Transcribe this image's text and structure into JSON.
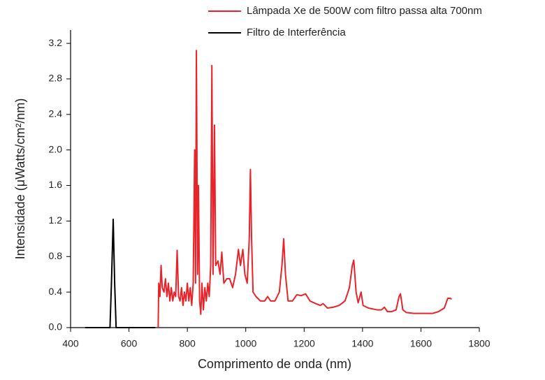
{
  "chart_data": {
    "type": "line",
    "xlabel": "Comprimento de onda (nm)",
    "ylabel": "Intensidade (μWatts/cm²/nm)",
    "xlim": [
      400,
      1800
    ],
    "xticks": [
      400,
      600,
      800,
      1000,
      1200,
      1400,
      1600,
      1800
    ],
    "ylim": [
      0,
      3.35
    ],
    "yticks": [
      {
        "value": 0,
        "label": "0.0"
      },
      {
        "value": 0.4,
        "label": "0.4"
      },
      {
        "value": 0.8,
        "label": "0.8"
      },
      {
        "value": 1.2,
        "label": "1.2"
      },
      {
        "value": 1.6,
        "label": "1.6"
      },
      {
        "value": 2.0,
        "label": "2.0"
      },
      {
        "value": 2.4,
        "label": "2.4"
      },
      {
        "value": 2.8,
        "label": "2.8"
      },
      {
        "value": 3.2,
        "label": "3.2"
      }
    ],
    "series": [
      {
        "name": "Lâmpada Xe de 500W com filtro passa alta 700nm",
        "color": "#e8232a",
        "x": [
          700,
          702,
          706,
          710,
          714,
          720,
          725,
          730,
          735,
          740,
          745,
          750,
          755,
          760,
          765,
          770,
          775,
          780,
          785,
          790,
          795,
          800,
          805,
          810,
          815,
          820,
          825,
          828,
          831,
          835,
          838,
          842,
          846,
          850,
          855,
          860,
          865,
          870,
          875,
          880,
          884,
          888,
          893,
          897,
          905,
          912,
          918,
          925,
          935,
          945,
          955,
          965,
          975,
          982,
          990,
          997,
          1005,
          1012,
          1016,
          1020,
          1025,
          1035,
          1050,
          1065,
          1075,
          1085,
          1100,
          1115,
          1124,
          1130,
          1136,
          1145,
          1160,
          1175,
          1190,
          1205,
          1220,
          1240,
          1255,
          1265,
          1280,
          1300,
          1320,
          1340,
          1355,
          1365,
          1370,
          1378,
          1385,
          1395,
          1402,
          1420,
          1450,
          1465,
          1475,
          1485,
          1500,
          1515,
          1525,
          1530,
          1538,
          1550,
          1575,
          1600,
          1620,
          1640,
          1660,
          1680,
          1692,
          1700,
          1705
        ],
        "values": [
          0.0,
          0.5,
          0.35,
          0.7,
          0.45,
          0.4,
          0.55,
          0.35,
          0.5,
          0.3,
          0.45,
          0.3,
          0.4,
          0.35,
          0.87,
          0.35,
          0.3,
          0.45,
          0.25,
          0.4,
          0.3,
          0.5,
          0.3,
          0.45,
          0.25,
          0.5,
          2.0,
          0.5,
          3.12,
          0.6,
          1.6,
          0.3,
          0.15,
          0.5,
          0.2,
          0.45,
          0.3,
          0.5,
          0.35,
          0.7,
          2.95,
          0.6,
          2.28,
          0.7,
          0.75,
          0.6,
          0.85,
          0.5,
          0.55,
          0.55,
          0.45,
          0.6,
          0.88,
          0.7,
          0.88,
          0.6,
          0.5,
          1.0,
          1.78,
          1.0,
          0.4,
          0.35,
          0.3,
          0.3,
          0.35,
          0.3,
          0.3,
          0.4,
          0.7,
          1.0,
          0.6,
          0.3,
          0.3,
          0.37,
          0.36,
          0.38,
          0.3,
          0.27,
          0.25,
          0.27,
          0.22,
          0.23,
          0.25,
          0.3,
          0.45,
          0.7,
          0.76,
          0.4,
          0.28,
          0.4,
          0.25,
          0.22,
          0.2,
          0.2,
          0.23,
          0.18,
          0.18,
          0.2,
          0.35,
          0.38,
          0.2,
          0.17,
          0.16,
          0.16,
          0.16,
          0.16,
          0.18,
          0.22,
          0.33,
          0.33,
          0.32
        ]
      },
      {
        "name": "Filtro de Interferência",
        "color": "#000000",
        "x": [
          450,
          535,
          540,
          546,
          551,
          556,
          690
        ],
        "values": [
          0,
          0,
          0.5,
          1.22,
          0.5,
          0,
          0
        ]
      }
    ]
  }
}
